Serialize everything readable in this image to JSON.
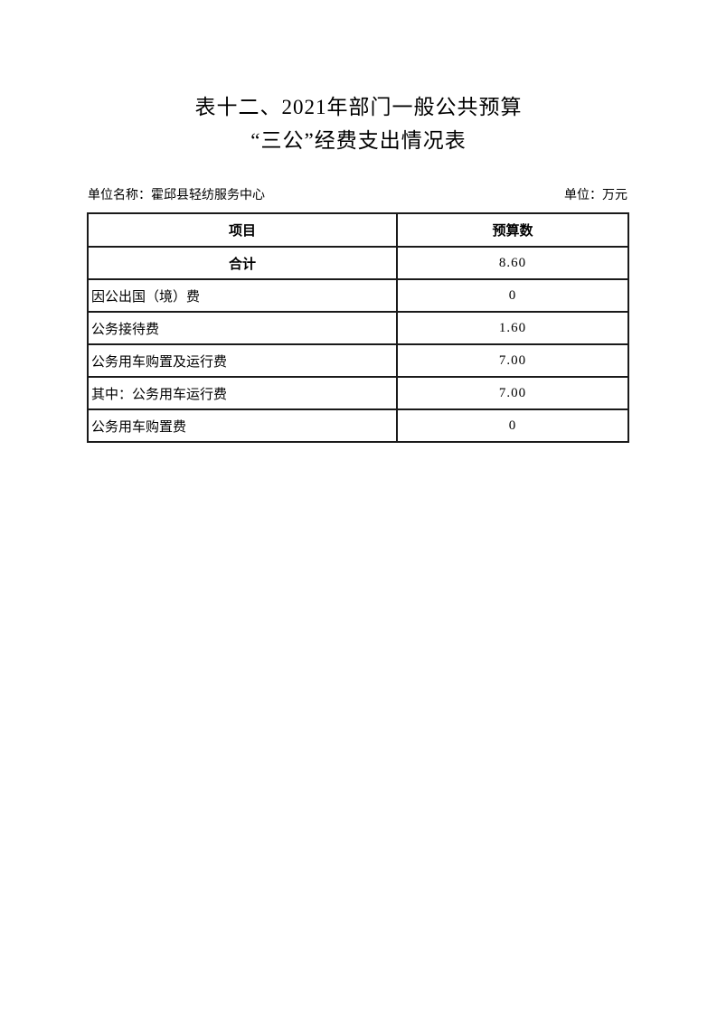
{
  "page": {
    "title_line1": "表十二、2021年部门一般公共预算",
    "title_line2": "“三公”经费支出情况表",
    "unit_name_label": "单位名称：",
    "unit_name_value": "霍邱县轻纺服务中心",
    "currency_unit_label": "单位：万元"
  },
  "table": {
    "headers": [
      "项目",
      "预算数"
    ],
    "rows": [
      {
        "label": "合计",
        "value": "8.60"
      },
      {
        "label": "因公出国（境）费",
        "value": "0"
      },
      {
        "label": "公务接待费",
        "value": "1.60"
      },
      {
        "label": "公务用车购置及运行费",
        "value": "7.00"
      },
      {
        "label": "其中：公务用车运行费",
        "value": "7.00"
      },
      {
        "label": "公务用车购置费",
        "value": "0"
      }
    ]
  }
}
